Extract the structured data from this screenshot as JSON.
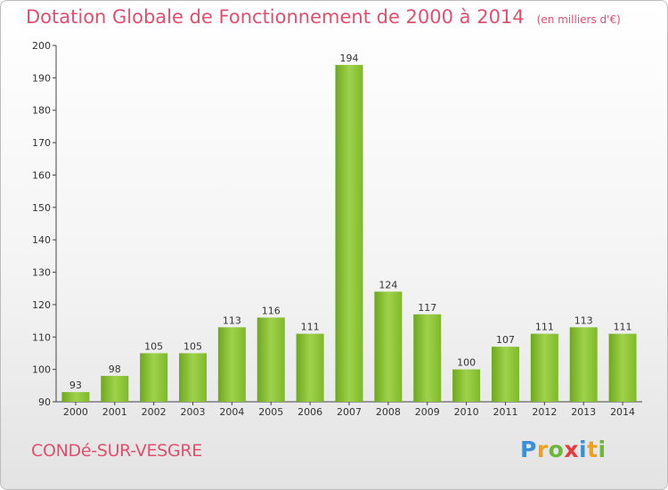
{
  "title": "Dotation Globale de Fonctionnement de 2000 à 2014",
  "unit": "(en milliers d'€)",
  "commune": "CONDé-SUR-VESGRE",
  "logo": {
    "letters": [
      "P",
      "r",
      "o",
      "x",
      "i",
      "t",
      "i"
    ],
    "colors": [
      "#3a8fd6",
      "#f0a020",
      "#6bb838",
      "#e83a3a",
      "#3a8fd6",
      "#f0a020",
      "#6bb838"
    ]
  },
  "colors": {
    "bar_light": "#9fd24c",
    "bar_dark": "#6ea81e",
    "accent_text": "#e0506e"
  },
  "chart_data": {
    "type": "bar",
    "title": "Dotation Globale de Fonctionnement de 2000 à 2014",
    "xlabel": "",
    "ylabel": "",
    "categories": [
      "2000",
      "2001",
      "2002",
      "2003",
      "2004",
      "2005",
      "2006",
      "2007",
      "2008",
      "2009",
      "2010",
      "2011",
      "2012",
      "2013",
      "2014"
    ],
    "values": [
      93,
      98,
      105,
      105,
      113,
      116,
      111,
      194,
      124,
      117,
      100,
      107,
      111,
      113,
      111
    ],
    "ylim": [
      90,
      200
    ],
    "yticks": [
      90,
      100,
      110,
      120,
      130,
      140,
      150,
      160,
      170,
      180,
      190,
      200
    ],
    "grid": false,
    "legend": "none"
  }
}
